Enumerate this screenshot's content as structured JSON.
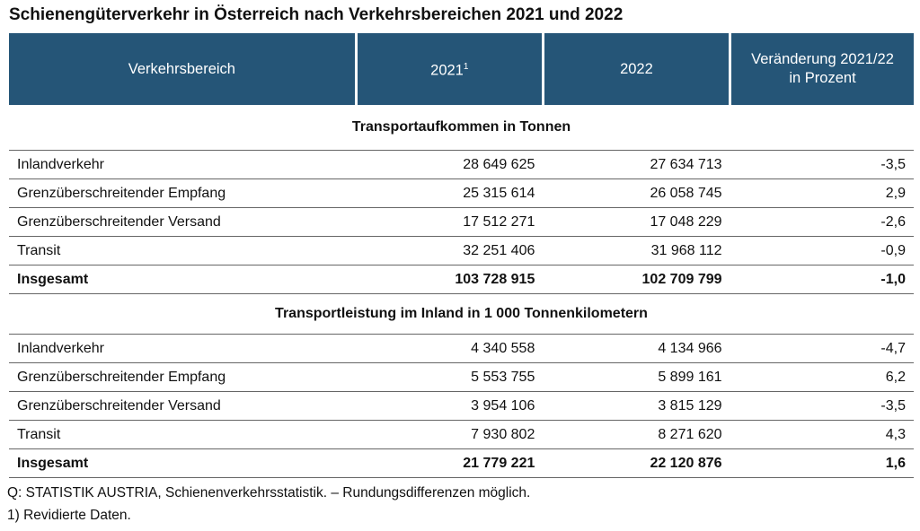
{
  "title": "Schienengüterverkehr in Österreich nach Verkehrsbereichen 2021 und 2022",
  "headers": {
    "col0": "Verkehrsbereich",
    "col1": "2021",
    "col1_sup": "1",
    "col2": "2022",
    "col3_line1": "Veränderung 2021/22",
    "col3_line2": "in Prozent"
  },
  "sections": [
    {
      "title": "Transportaufkommen in Tonnen",
      "rows": [
        [
          "Inlandverkehr",
          "28 649 625",
          "27 634 713",
          "-3,5"
        ],
        [
          "Grenzüberschreitender Empfang",
          "25 315 614",
          "26 058 745",
          "2,9"
        ],
        [
          "Grenzüberschreitender Versand",
          "17 512 271",
          "17 048 229",
          "-2,6"
        ],
        [
          "Transit",
          "32 251 406",
          "31 968 112",
          "-0,9"
        ],
        [
          "Insgesamt",
          "103 728 915",
          "102 709 799",
          "-1,0"
        ]
      ]
    },
    {
      "title": "Transportleistung im Inland in 1 000 Tonnenkilometern",
      "rows": [
        [
          "Inlandverkehr",
          "4 340 558",
          "4 134 966",
          "-4,7"
        ],
        [
          "Grenzüberschreitender Empfang",
          "5 553 755",
          "5 899 161",
          "6,2"
        ],
        [
          "Grenzüberschreitender Versand",
          "3 954 106",
          "3 815 129",
          "-3,5"
        ],
        [
          "Transit",
          "7 930 802",
          "8 271 620",
          "4,3"
        ],
        [
          "Insgesamt",
          "21 779 221",
          "22 120 876",
          "1,6"
        ]
      ]
    }
  ],
  "footnotes": {
    "source": "Q: STATISTIK AUSTRIA, Schienenverkehrsstatistik. – Rundungsdifferenzen möglich.",
    "note1": "1) Revidierte Daten."
  }
}
